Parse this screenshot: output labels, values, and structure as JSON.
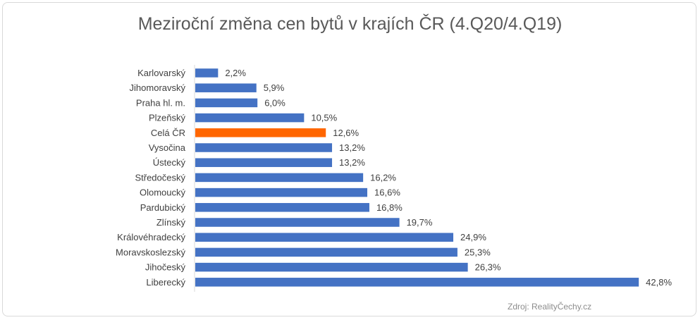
{
  "chart_data": {
    "type": "bar",
    "orientation": "horizontal",
    "title": "Meziroční změna cen bytů v krajích ČR (4.Q20/4.Q19)",
    "source": "Zdroj: RealityČechy.cz",
    "categories": [
      "Karlovarský",
      "Jihomoravský",
      "Praha hl. m.",
      "Plzeňský",
      "Celá ČR",
      "Vysočina",
      "Ústecký",
      "Středočeský",
      "Olomoucký",
      "Pardubický",
      "Zlínský",
      "Královéhradecký",
      "Moravskoslezský",
      "Jihočeský",
      "Liberecký"
    ],
    "values": [
      2.2,
      5.9,
      6.0,
      10.5,
      12.6,
      13.2,
      13.2,
      16.2,
      16.6,
      16.8,
      19.7,
      24.9,
      25.3,
      26.3,
      42.8
    ],
    "value_labels": [
      "2,2%",
      "5,9%",
      "6,0%",
      "10,5%",
      "12,6%",
      "13,2%",
      "13,2%",
      "16,2%",
      "16,6%",
      "16,8%",
      "19,7%",
      "24,9%",
      "25,3%",
      "26,3%",
      "42,8%"
    ],
    "colors": {
      "default": "#4472C4",
      "highlight": "#FF6600"
    },
    "highlight_category": "Celá ČR",
    "legend": "none",
    "grid": false
  }
}
